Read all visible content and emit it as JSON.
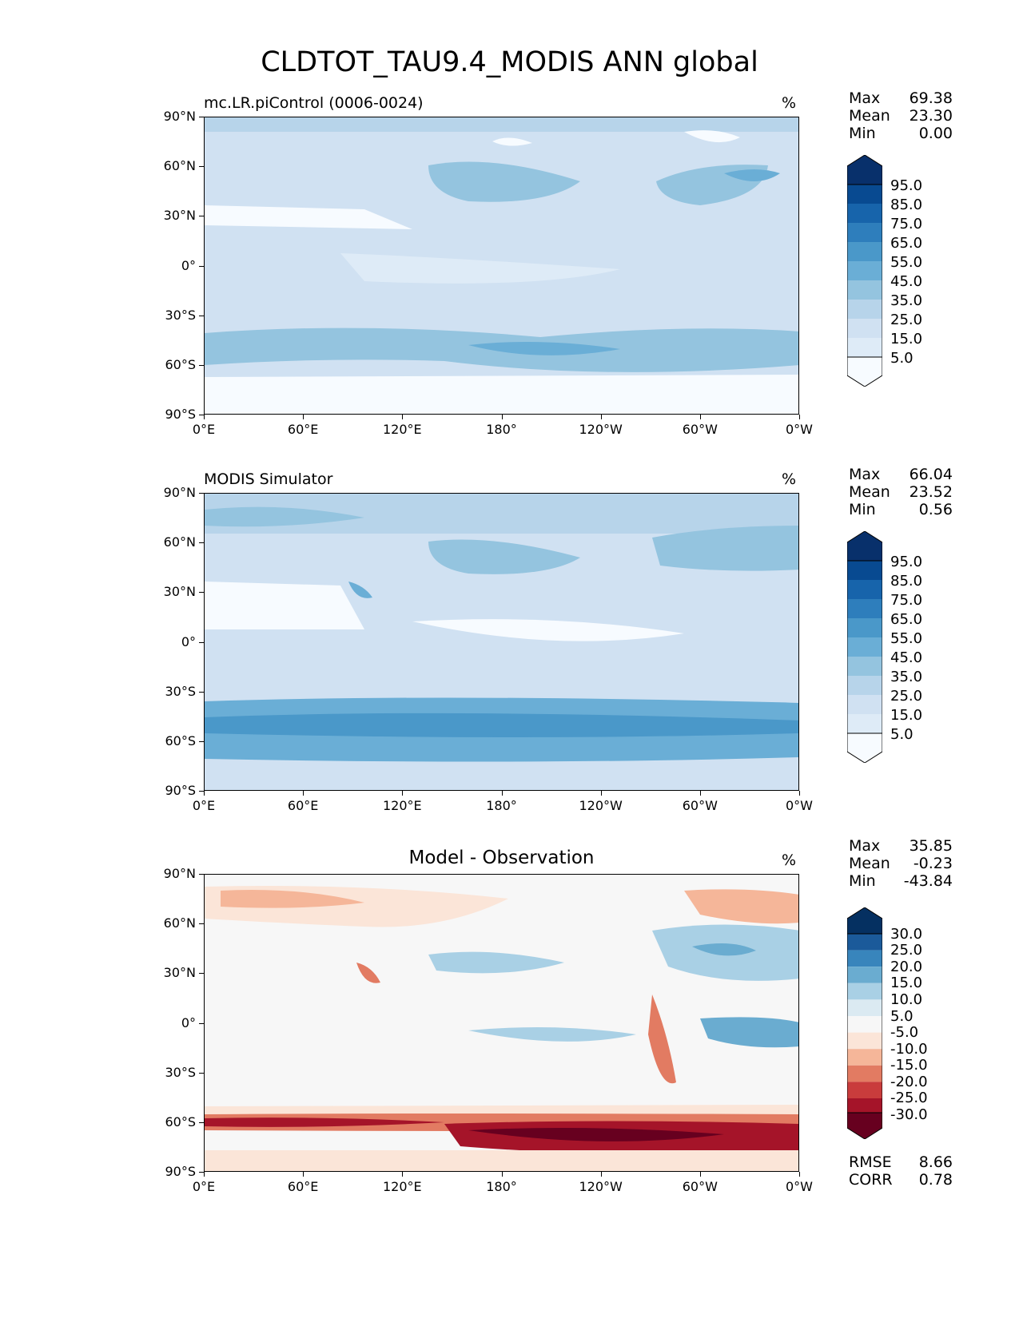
{
  "figure": {
    "title": "CLDTOT_TAU9.4_MODIS ANN global"
  },
  "axes": {
    "lat_ticks": [
      "90°N",
      "60°N",
      "30°N",
      "0°",
      "30°S",
      "60°S",
      "90°S"
    ],
    "lon_ticks": [
      "0°E",
      "60°E",
      "120°E",
      "180°",
      "120°W",
      "60°W",
      "0°W"
    ]
  },
  "colors": {
    "blues": [
      "#f7fbff",
      "#deebf7",
      "#d0e1f2",
      "#b7d4ea",
      "#94c4df",
      "#6aaed6",
      "#4a98c9",
      "#2e7ebc",
      "#1764ab",
      "#084a91",
      "#08306b"
    ],
    "diverging": [
      "#67001f",
      "#a51429",
      "#c93c3c",
      "#e27b62",
      "#f5b699",
      "#fbe5d8",
      "#f7f7f7",
      "#dbeaf2",
      "#a9d0e5",
      "#6aacd0",
      "#3885bc",
      "#1b5a9a",
      "#053061"
    ],
    "land_line": "#000000"
  },
  "panels": [
    {
      "title": "mc.LR.piControl (0006-0024)",
      "units": "%",
      "stats": {
        "max_label": "Max",
        "max": "69.38",
        "mean_label": "Mean",
        "mean": "23.30",
        "min_label": "Min",
        "min": "0.00"
      },
      "colorbar": {
        "labels": [
          "95.0",
          "85.0",
          "75.0",
          "65.0",
          "55.0",
          "45.0",
          "35.0",
          "25.0",
          "15.0",
          "5.0"
        ]
      }
    },
    {
      "title": "MODIS Simulator",
      "units": "%",
      "stats": {
        "max_label": "Max",
        "max": "66.04",
        "mean_label": "Mean",
        "mean": "23.52",
        "min_label": "Min",
        "min": "0.56"
      },
      "colorbar": {
        "labels": [
          "95.0",
          "85.0",
          "75.0",
          "65.0",
          "55.0",
          "45.0",
          "35.0",
          "25.0",
          "15.0",
          "5.0"
        ]
      }
    },
    {
      "title": "Model - Observation",
      "units": "%",
      "stats": {
        "max_label": "Max",
        "max": "35.85",
        "mean_label": "Mean",
        "mean": "-0.23",
        "min_label": "Min",
        "min": "-43.84"
      },
      "colorbar": {
        "labels": [
          "30.0",
          "25.0",
          "20.0",
          "15.0",
          "10.0",
          "5.0",
          "-5.0",
          "-10.0",
          "-15.0",
          "-20.0",
          "-25.0",
          "-30.0"
        ]
      },
      "metrics": {
        "rmse_label": "RMSE",
        "rmse": "8.66",
        "corr_label": "CORR",
        "corr": "0.78"
      }
    }
  ]
}
